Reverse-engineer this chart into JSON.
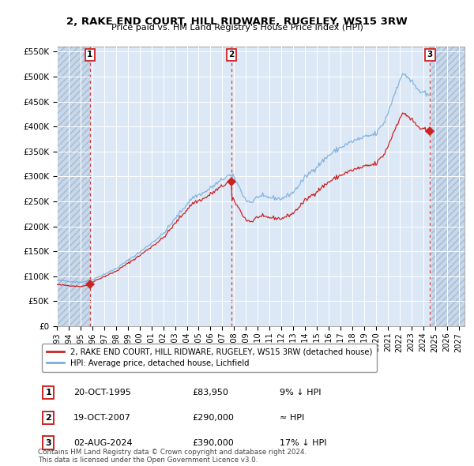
{
  "title": "2, RAKE END COURT, HILL RIDWARE, RUGELEY, WS15 3RW",
  "subtitle": "Price paid vs. HM Land Registry's House Price Index (HPI)",
  "xlim_start": 1993.0,
  "xlim_end": 2027.5,
  "ylim": [
    0,
    560000
  ],
  "yticks": [
    0,
    50000,
    100000,
    150000,
    200000,
    250000,
    300000,
    350000,
    400000,
    450000,
    500000,
    550000
  ],
  "ytick_labels": [
    "£0",
    "£50K",
    "£100K",
    "£150K",
    "£200K",
    "£250K",
    "£300K",
    "£350K",
    "£400K",
    "£450K",
    "£500K",
    "£550K"
  ],
  "xticks": [
    1993,
    1994,
    1995,
    1996,
    1997,
    1998,
    1999,
    2000,
    2001,
    2002,
    2003,
    2004,
    2005,
    2006,
    2007,
    2008,
    2009,
    2010,
    2011,
    2012,
    2013,
    2014,
    2015,
    2016,
    2017,
    2018,
    2019,
    2020,
    2021,
    2022,
    2023,
    2024,
    2025,
    2026,
    2027
  ],
  "hpi_color": "#7aaddc",
  "price_color": "#cc2222",
  "sale_marker_color": "#cc2222",
  "bg_color": "#ffffff",
  "plot_bg_color": "#dce8f5",
  "hatch_bg_color": "#c8d8eb",
  "grid_color": "#ffffff",
  "hatch_end_x": 1995.8,
  "sale_points": [
    {
      "year": 1995.8,
      "price": 83950,
      "label": "1"
    },
    {
      "year": 2007.79,
      "price": 290000,
      "label": "2"
    },
    {
      "year": 2024.58,
      "price": 390000,
      "label": "3"
    }
  ],
  "legend_entries": [
    {
      "label": "2, RAKE END COURT, HILL RIDWARE, RUGELEY, WS15 3RW (detached house)",
      "color": "#cc2222"
    },
    {
      "label": "HPI: Average price, detached house, Lichfield",
      "color": "#7aaddc"
    }
  ],
  "table_rows": [
    {
      "num": "1",
      "date": "20-OCT-1995",
      "price": "£83,950",
      "hpi": "9% ↓ HPI"
    },
    {
      "num": "2",
      "date": "19-OCT-2007",
      "price": "£290,000",
      "hpi": "≈ HPI"
    },
    {
      "num": "3",
      "date": "02-AUG-2024",
      "price": "£390,000",
      "hpi": "17% ↓ HPI"
    }
  ],
  "footnote": "Contains HM Land Registry data © Crown copyright and database right 2024.\nThis data is licensed under the Open Government Licence v3.0."
}
